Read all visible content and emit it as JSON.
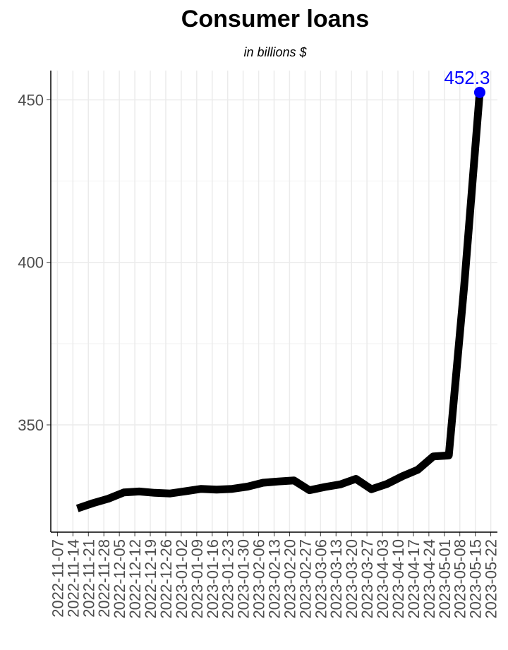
{
  "chart_data": {
    "type": "line",
    "title": "Consumer loans",
    "subtitle": "in billions $",
    "xlabel": "",
    "ylabel": "",
    "x": [
      "2022-11-16",
      "2022-11-23",
      "2022-11-30",
      "2022-12-07",
      "2022-12-14",
      "2022-12-21",
      "2022-12-28",
      "2023-01-04",
      "2023-01-11",
      "2023-01-18",
      "2023-01-25",
      "2023-02-01",
      "2023-02-08",
      "2023-02-15",
      "2023-02-22",
      "2023-03-01",
      "2023-03-08",
      "2023-03-15",
      "2023-03-22",
      "2023-03-29",
      "2023-04-05",
      "2023-04-12",
      "2023-04-19",
      "2023-04-26",
      "2023-05-03",
      "2023-05-10",
      "2023-05-17"
    ],
    "values": [
      324.3,
      325.9,
      327.3,
      329.2,
      329.5,
      329.1,
      328.9,
      329.6,
      330.3,
      330.1,
      330.3,
      331.0,
      332.2,
      332.6,
      332.9,
      329.9,
      330.9,
      331.7,
      333.4,
      330.2,
      331.8,
      334.2,
      336.2,
      340.3,
      340.6,
      393.0,
      452.3
    ],
    "x_ticks": [
      "2022-11-07",
      "2022-11-14",
      "2022-11-21",
      "2022-11-28",
      "2022-12-05",
      "2022-12-12",
      "2022-12-19",
      "2022-12-26",
      "2023-01-02",
      "2023-01-09",
      "2023-01-16",
      "2023-01-23",
      "2023-01-30",
      "2023-02-06",
      "2023-02-13",
      "2023-02-20",
      "2023-02-27",
      "2023-03-06",
      "2023-03-13",
      "2023-03-20",
      "2023-03-27",
      "2023-04-03",
      "2023-04-10",
      "2023-04-17",
      "2023-04-24",
      "2023-05-01",
      "2023-05-08",
      "2023-05-15",
      "2023-05-22"
    ],
    "y_ticks": [
      350,
      400,
      450
    ],
    "ylim": [
      317,
      459
    ],
    "xlim": [
      "2022-11-07",
      "2023-05-22"
    ],
    "end_label": "452.3",
    "grid": true,
    "line_color": "#000000",
    "highlight_color": "#0000ff"
  }
}
